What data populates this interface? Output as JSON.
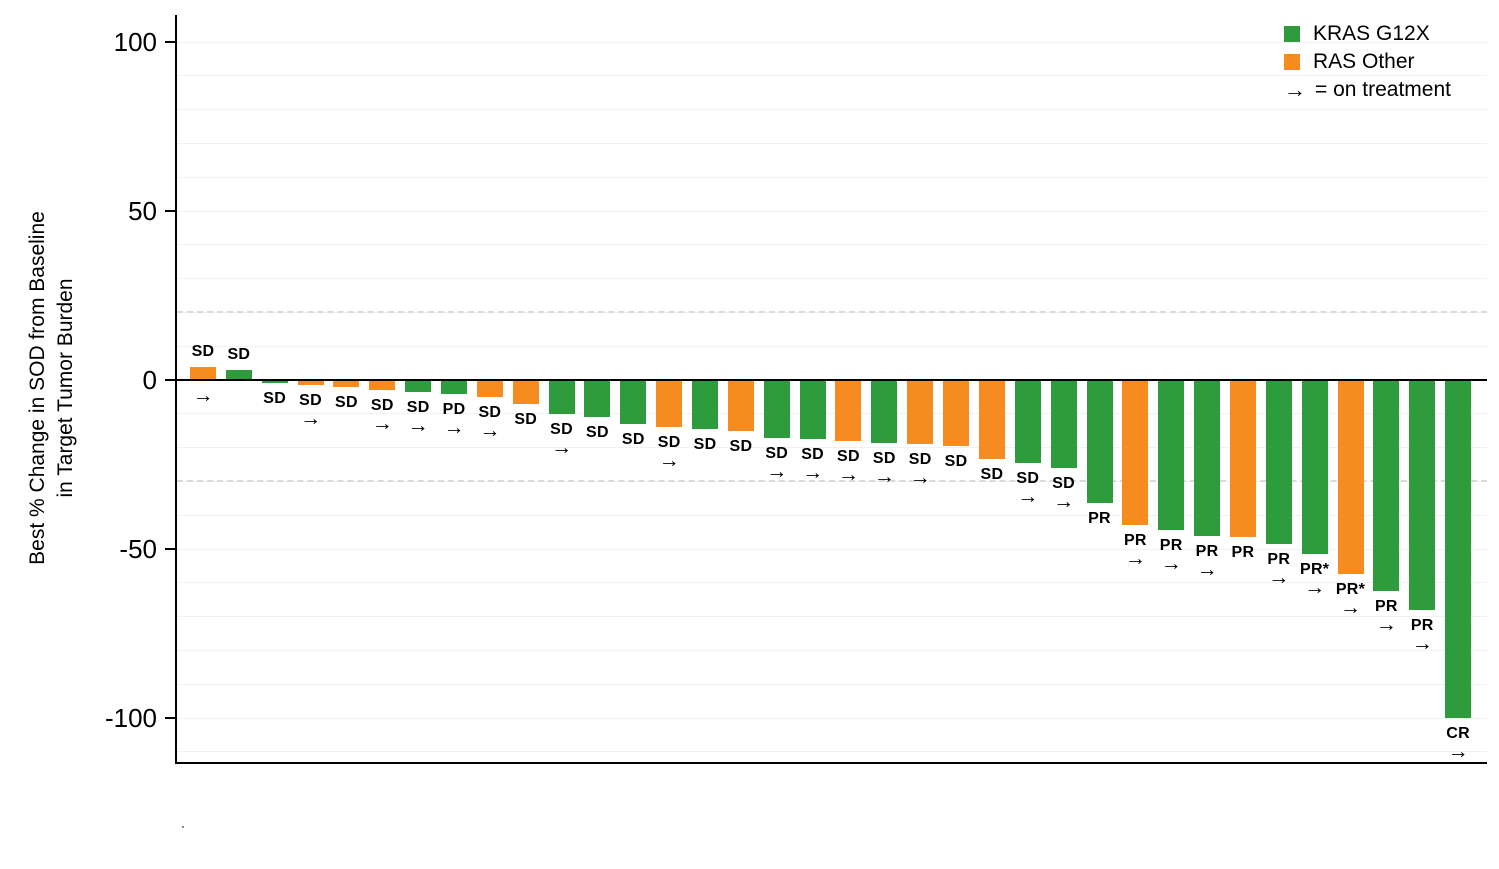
{
  "chart_data": {
    "type": "bar",
    "subtype": "waterfall",
    "ylabel_lines": [
      "Best % Change in SOD from Baseline",
      "in Target Tumor Burden"
    ],
    "yticks": [
      100,
      50,
      0,
      -50,
      -100
    ],
    "ylim": [
      -113,
      108
    ],
    "grid_step": 10,
    "grid_on": true,
    "reference_lines_dashed": [
      20,
      -30
    ],
    "colors": {
      "KRAS G12X": "#2E9B3C",
      "RAS Other": "#F68B1F"
    },
    "legend": {
      "position": "top-right",
      "items": [
        {
          "label": "KRAS G12X",
          "color": "#2E9B3C"
        },
        {
          "label": "RAS Other",
          "color": "#F68B1F"
        }
      ],
      "note_symbol": "→",
      "note_text": "= on treatment"
    },
    "arrow_symbol": "→",
    "bars": [
      {
        "value": 4,
        "group": "RAS Other",
        "response": "SD",
        "on_treatment": true
      },
      {
        "value": 3,
        "group": "KRAS G12X",
        "response": "SD",
        "on_treatment": false
      },
      {
        "value": -1,
        "group": "KRAS G12X",
        "response": "SD",
        "on_treatment": false
      },
      {
        "value": -1.5,
        "group": "RAS Other",
        "response": "SD",
        "on_treatment": true
      },
      {
        "value": -2,
        "group": "RAS Other",
        "response": "SD",
        "on_treatment": false
      },
      {
        "value": -3,
        "group": "RAS Other",
        "response": "SD",
        "on_treatment": true
      },
      {
        "value": -3.5,
        "group": "KRAS G12X",
        "response": "SD",
        "on_treatment": true
      },
      {
        "value": -4,
        "group": "KRAS G12X",
        "response": "PD",
        "on_treatment": true
      },
      {
        "value": -5,
        "group": "RAS Other",
        "response": "SD",
        "on_treatment": true
      },
      {
        "value": -7,
        "group": "RAS Other",
        "response": "SD",
        "on_treatment": false
      },
      {
        "value": -10,
        "group": "KRAS G12X",
        "response": "SD",
        "on_treatment": true
      },
      {
        "value": -11,
        "group": "KRAS G12X",
        "response": "SD",
        "on_treatment": false
      },
      {
        "value": -13,
        "group": "KRAS G12X",
        "response": "SD",
        "on_treatment": false
      },
      {
        "value": -14,
        "group": "RAS Other",
        "response": "SD",
        "on_treatment": true
      },
      {
        "value": -14.5,
        "group": "KRAS G12X",
        "response": "SD",
        "on_treatment": false
      },
      {
        "value": -15,
        "group": "RAS Other",
        "response": "SD",
        "on_treatment": false
      },
      {
        "value": -17,
        "group": "KRAS G12X",
        "response": "SD",
        "on_treatment": true
      },
      {
        "value": -17.5,
        "group": "KRAS G12X",
        "response": "SD",
        "on_treatment": true
      },
      {
        "value": -18,
        "group": "RAS Other",
        "response": "SD",
        "on_treatment": true
      },
      {
        "value": -18.5,
        "group": "KRAS G12X",
        "response": "SD",
        "on_treatment": true
      },
      {
        "value": -19,
        "group": "RAS Other",
        "response": "SD",
        "on_treatment": true
      },
      {
        "value": -19.5,
        "group": "RAS Other",
        "response": "SD",
        "on_treatment": false
      },
      {
        "value": -23.5,
        "group": "RAS Other",
        "response": "SD",
        "on_treatment": false
      },
      {
        "value": -24.5,
        "group": "KRAS G12X",
        "response": "SD",
        "on_treatment": true
      },
      {
        "value": -26,
        "group": "KRAS G12X",
        "response": "SD",
        "on_treatment": true
      },
      {
        "value": -36.5,
        "group": "KRAS G12X",
        "response": "PR",
        "on_treatment": false
      },
      {
        "value": -43,
        "group": "RAS Other",
        "response": "PR",
        "on_treatment": true
      },
      {
        "value": -44.5,
        "group": "KRAS G12X",
        "response": "PR",
        "on_treatment": true
      },
      {
        "value": -46,
        "group": "KRAS G12X",
        "response": "PR",
        "on_treatment": true
      },
      {
        "value": -46.5,
        "group": "RAS Other",
        "response": "PR",
        "on_treatment": false
      },
      {
        "value": -48.5,
        "group": "KRAS G12X",
        "response": "PR",
        "on_treatment": true
      },
      {
        "value": -51.5,
        "group": "KRAS G12X",
        "response": "PR*",
        "on_treatment": true
      },
      {
        "value": -57.5,
        "group": "RAS Other",
        "response": "PR*",
        "on_treatment": true
      },
      {
        "value": -62.5,
        "group": "KRAS G12X",
        "response": "PR",
        "on_treatment": true
      },
      {
        "value": -68,
        "group": "KRAS G12X",
        "response": "PR",
        "on_treatment": true
      },
      {
        "value": -100,
        "group": "KRAS G12X",
        "response": "CR",
        "on_treatment": true
      }
    ]
  }
}
